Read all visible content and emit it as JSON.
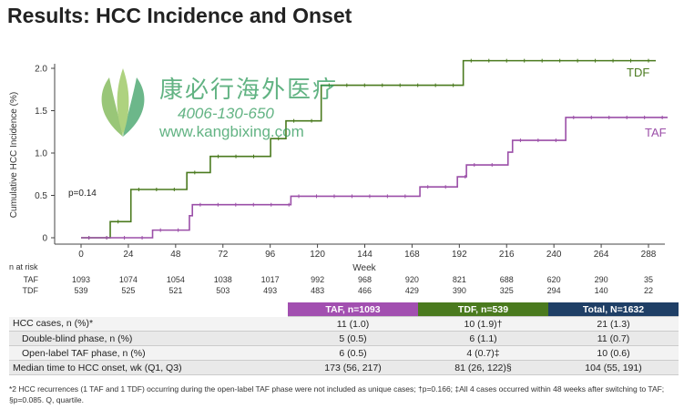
{
  "title": "Results: HCC Incidence and Onset",
  "chart_data": {
    "type": "line",
    "title": "Results: HCC Incidence and Onset",
    "xlabel": "Week",
    "ylabel": "Cumulative HCC Incidence (%)",
    "xlim": [
      0,
      300
    ],
    "ylim": [
      0,
      2.0
    ],
    "xticks": [
      0,
      24,
      48,
      72,
      96,
      120,
      144,
      168,
      192,
      216,
      240,
      264,
      288
    ],
    "yticks": [
      "0",
      "0.5",
      "1.0",
      "1.5",
      "2.0"
    ],
    "annotation": "p=0.14",
    "series": [
      {
        "name": "TDF",
        "color": "#4a7a1e",
        "steps": [
          [
            0,
            0
          ],
          [
            14.8,
            0.19
          ],
          [
            25.3,
            0.57
          ],
          [
            53.7,
            0.77
          ],
          [
            65.6,
            0.96
          ],
          [
            96.2,
            1.17
          ],
          [
            104,
            1.38
          ],
          [
            121.9,
            1.8
          ],
          [
            194,
            2.09
          ],
          [
            291.7,
            2.09
          ]
        ]
      },
      {
        "name": "TAF",
        "color": "#9b4fa8",
        "steps": [
          [
            0,
            0
          ],
          [
            36.3,
            0.09
          ],
          [
            55,
            0.26
          ],
          [
            56.5,
            0.39
          ],
          [
            106.5,
            0.49
          ],
          [
            172,
            0.6
          ],
          [
            191,
            0.72
          ],
          [
            195.6,
            0.86
          ],
          [
            216.7,
            1.01
          ],
          [
            219,
            1.15
          ],
          [
            246,
            1.42
          ],
          [
            297.7,
            1.42
          ]
        ]
      }
    ],
    "risk_table": {
      "label": "n at risk",
      "rows": [
        {
          "name": "TAF",
          "values": [
            "1093",
            "1074",
            "1054",
            "1038",
            "1017",
            "992",
            "968",
            "920",
            "821",
            "688",
            "620",
            "290",
            "35"
          ]
        },
        {
          "name": "TDF",
          "values": [
            "539",
            "525",
            "521",
            "503",
            "493",
            "483",
            "466",
            "429",
            "390",
            "325",
            "294",
            "140",
            "22"
          ]
        }
      ]
    }
  },
  "table": {
    "headers": [
      {
        "label": "TAF, n=1093",
        "color": "#a24fb0"
      },
      {
        "label": "TDF, n=539",
        "color": "#4a7a1e"
      },
      {
        "label": "Total, N=1632",
        "color": "#1f3f66"
      }
    ],
    "rows": [
      {
        "label": "HCC cases, n (%)*",
        "values": [
          "11 (1.0)",
          "10 (1.9)†",
          "21 (1.3)"
        ]
      },
      {
        "label": "Double-blind phase, n (%)",
        "values": [
          "5 (0.5)",
          "6 (1.1)",
          "11 (0.7)"
        ]
      },
      {
        "label": "Open-label TAF phase, n (%)",
        "values": [
          "6 (0.5)",
          "4 (0.7)‡",
          "10 (0.6)"
        ]
      },
      {
        "label": "Median time to HCC onset, wk (Q1, Q3)",
        "values": [
          "173 (56, 217)",
          "81 (26, 122)§",
          "104 (55, 191)"
        ]
      }
    ]
  },
  "footnote": "*2 HCC recurrences (1 TAF and 1 TDF) occurring during the open-label TAF phase were not included as unique cases; †p=0.166; ‡All 4 cases occurred within 48 weeks after switching to TAF; §p=0.085. Q, quartile.",
  "watermark": {
    "name": "康必行海外医疗",
    "phone": "4006-130-650",
    "url": "www.kangbixing.com"
  }
}
